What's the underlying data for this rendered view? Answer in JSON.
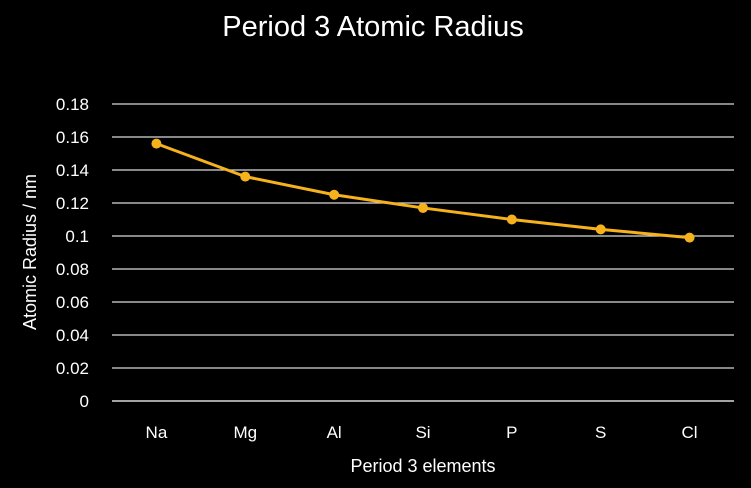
{
  "chart_data": {
    "type": "line",
    "title": "Period 3 Atomic Radius",
    "xlabel": "Period 3 elements",
    "ylabel": "Atomic Radius / nm",
    "categories": [
      "Na",
      "Mg",
      "Al",
      "Si",
      "P",
      "S",
      "Cl"
    ],
    "series": [
      {
        "values": [
          0.156,
          0.136,
          0.125,
          0.117,
          0.11,
          0.104,
          0.099
        ]
      }
    ],
    "ylim": [
      0,
      0.18
    ],
    "yticks": [
      "0",
      "0.02",
      "0.04",
      "0.06",
      "0.08",
      "0.1",
      "0.12",
      "0.14",
      "0.16",
      "0.18"
    ],
    "grid": true,
    "legend": "none",
    "colors": {
      "background": "#000000",
      "series": "#f5b21c",
      "grid": "#d9d9d9",
      "text": "#ffffff"
    }
  }
}
